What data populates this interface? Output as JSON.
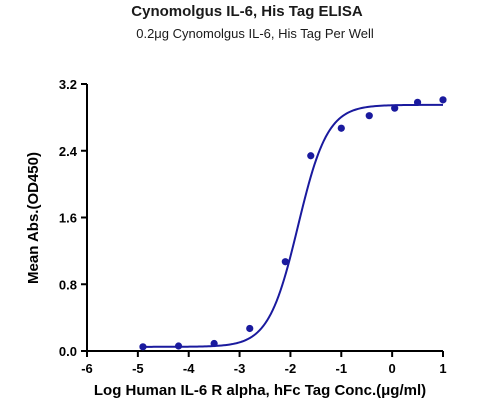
{
  "chart_data": {
    "type": "scatter",
    "title": "Cynomolgus IL-6, His Tag ELISA",
    "subtitle": "0.2μg Cynomolgus IL-6, His Tag Per Well",
    "xlabel": "Log Human IL-6 R alpha, hFc Tag Conc.(μg/ml)",
    "ylabel": "Mean Abs.(OD450)",
    "xlim": [
      -6,
      1
    ],
    "ylim": [
      0,
      3.2
    ],
    "x_ticks": [
      -6,
      -5,
      -4,
      -3,
      -2,
      -1,
      0,
      1
    ],
    "x_tick_labels": [
      "-6",
      "-5",
      "-4",
      "-3",
      "-2",
      "-1",
      "0",
      "1"
    ],
    "y_ticks": [
      0,
      0.8,
      1.6,
      2.4,
      3.2
    ],
    "y_tick_labels": [
      "0.0",
      "0.8",
      "1.6",
      "2.4",
      "3.2"
    ],
    "grid": false,
    "color": "#1a1a9e",
    "series": [
      {
        "points": [
          {
            "x": -4.9,
            "y": 0.05
          },
          {
            "x": -4.2,
            "y": 0.06
          },
          {
            "x": -3.5,
            "y": 0.09
          },
          {
            "x": -2.8,
            "y": 0.27
          },
          {
            "x": -2.1,
            "y": 1.07
          },
          {
            "x": -1.6,
            "y": 2.34
          },
          {
            "x": -1.0,
            "y": 2.67
          },
          {
            "x": -0.45,
            "y": 2.82
          },
          {
            "x": 0.05,
            "y": 2.91
          },
          {
            "x": 0.5,
            "y": 2.98
          },
          {
            "x": 1.0,
            "y": 3.01
          }
        ],
        "fit": {
          "model": "4PL",
          "bottom": 0.05,
          "top": 2.95,
          "logEC50": -1.85,
          "hill": 1.5
        }
      }
    ]
  }
}
